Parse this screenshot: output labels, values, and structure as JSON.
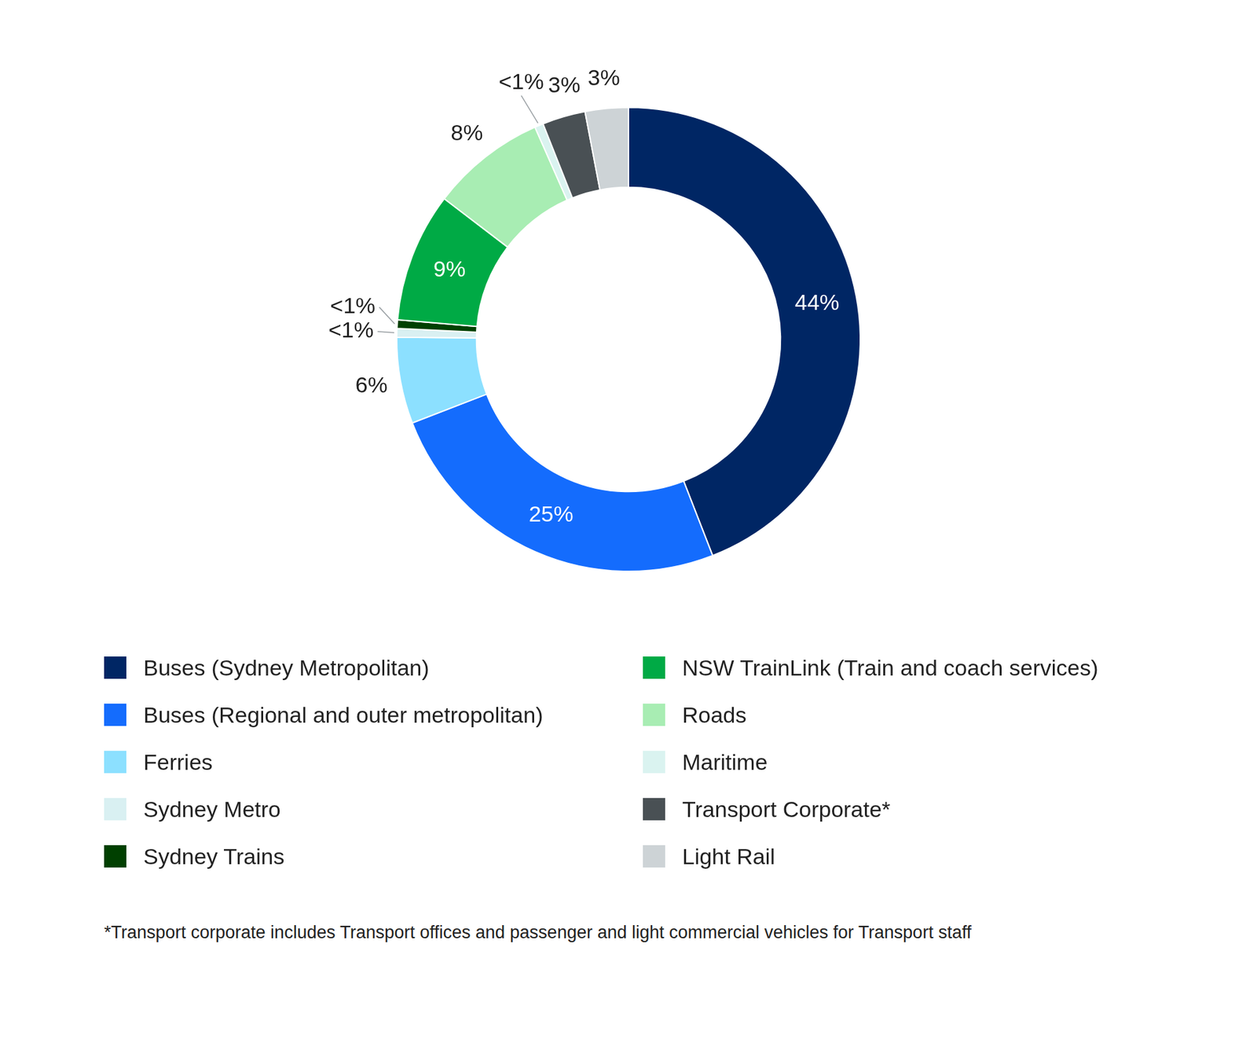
{
  "chart_data": {
    "type": "doughnut",
    "categories": [
      "Buses (Sydney Metropolitan)",
      "Buses (Regional and outer metropolitan)",
      "Ferries",
      "Sydney Metro",
      "Sydney Trains",
      "NSW TrainLink (Train and coach services)",
      "Roads",
      "Maritime",
      "Transport Corporate*",
      "Light Rail"
    ],
    "values": [
      44,
      25,
      6,
      0.6,
      0.6,
      9,
      8,
      0.6,
      3,
      3
    ],
    "value_labels": [
      "44%",
      "25%",
      "6%",
      "<1%",
      "<1%",
      "9%",
      "8%",
      "<1%",
      "3%",
      "3%"
    ],
    "colors": [
      "#002664",
      "#146cfd",
      "#8ce0ff",
      "#d9f0f2",
      "#004000",
      "#00aa45",
      "#a8edb3",
      "#daf3f0",
      "#495054",
      "#cdd3d6"
    ],
    "data_labels": true,
    "legend": "bottom",
    "footnote": "*Transport corporate includes Transport offices and passenger and light commercial vehicles for Transport staff"
  }
}
